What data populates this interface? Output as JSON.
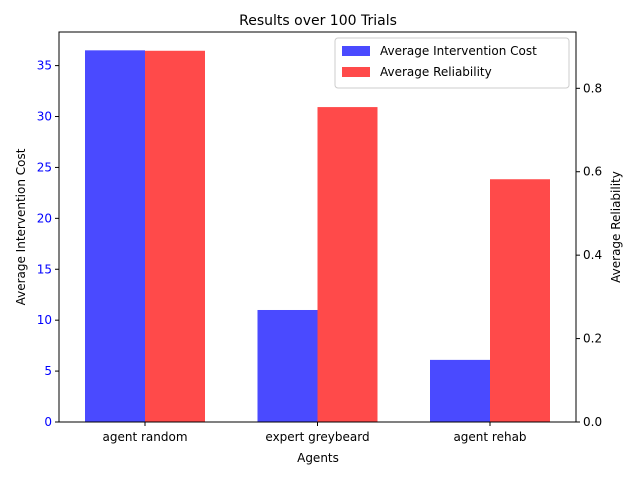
{
  "chart_data": {
    "type": "bar",
    "title": "Results over 100 Trials",
    "xlabel": "Agents",
    "categories": [
      "agent random",
      "expert greybeard",
      "agent rehab"
    ],
    "series": [
      {
        "name": "Average Intervention Cost",
        "axis": "left",
        "color": "#4a4aff",
        "values": [
          36.5,
          11.0,
          6.1
        ]
      },
      {
        "name": "Average Reliability",
        "axis": "right",
        "color": "#ff4a4a",
        "values": [
          0.89,
          0.755,
          0.582
        ]
      }
    ],
    "left_axis": {
      "label": "Average Intervention Cost",
      "ylim": [
        0,
        38.3
      ],
      "ticks": [
        0,
        5,
        10,
        15,
        20,
        25,
        30,
        35
      ],
      "tick_color": "#0000ff"
    },
    "right_axis": {
      "label": "Average Reliability",
      "ylim": [
        0,
        0.935
      ],
      "ticks": [
        0.0,
        0.2,
        0.4,
        0.6,
        0.8
      ],
      "tick_color": "#000000"
    },
    "legend": {
      "placement": "top-right",
      "entries": [
        "Average Intervention Cost",
        "Average Reliability"
      ]
    },
    "grid": false
  }
}
